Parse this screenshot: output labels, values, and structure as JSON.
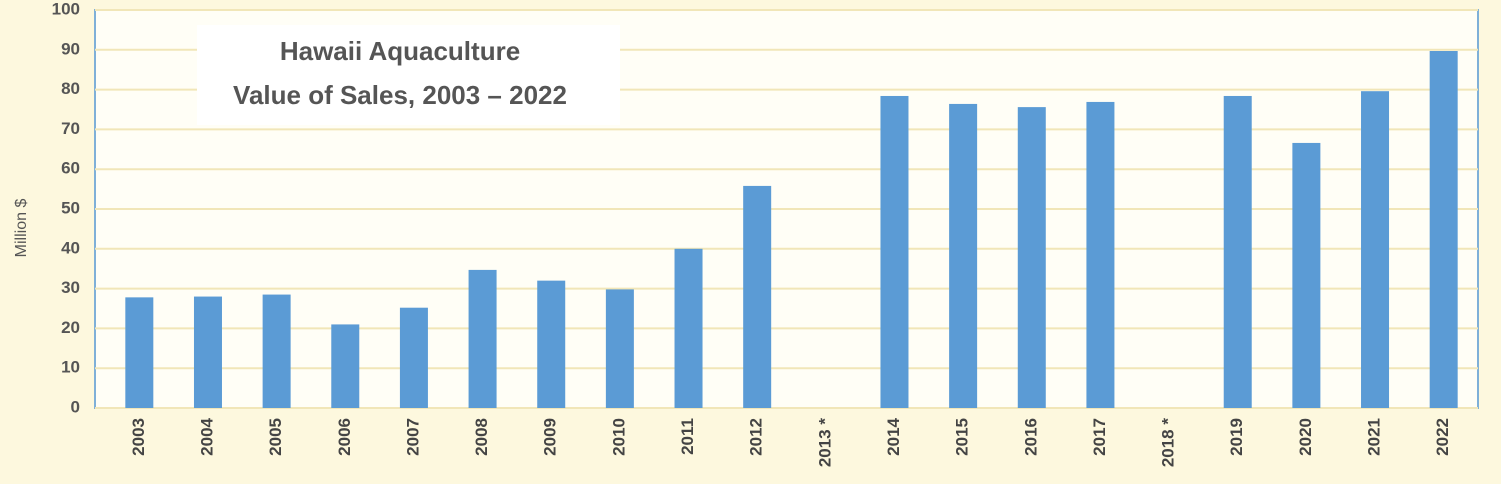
{
  "chart_data": {
    "type": "bar",
    "title": "Hawaii Aquaculture",
    "subtitle": "Value of Sales, 2003 – 2022",
    "y_label": "Million $",
    "categories": [
      "2003",
      "2004",
      "2005",
      "2006",
      "2007",
      "2008",
      "2009",
      "2010",
      "2011",
      "2012",
      "2013 *",
      "2014",
      "2015",
      "2016",
      "2017",
      "2018 *",
      "2019",
      "2020",
      "2021",
      "2022"
    ],
    "values": [
      27.8,
      28,
      28.5,
      21,
      25.2,
      34.7,
      32,
      29.8,
      40,
      55.8,
      null,
      78.4,
      76.4,
      75.6,
      76.9,
      null,
      78.4,
      66.6,
      79.6,
      89.7
    ],
    "color": "#5b9bd5",
    "ylim": [
      0,
      100
    ],
    "yticks": [
      0,
      10,
      20,
      30,
      40,
      50,
      60,
      70,
      80,
      90,
      100
    ],
    "grid": true
  }
}
